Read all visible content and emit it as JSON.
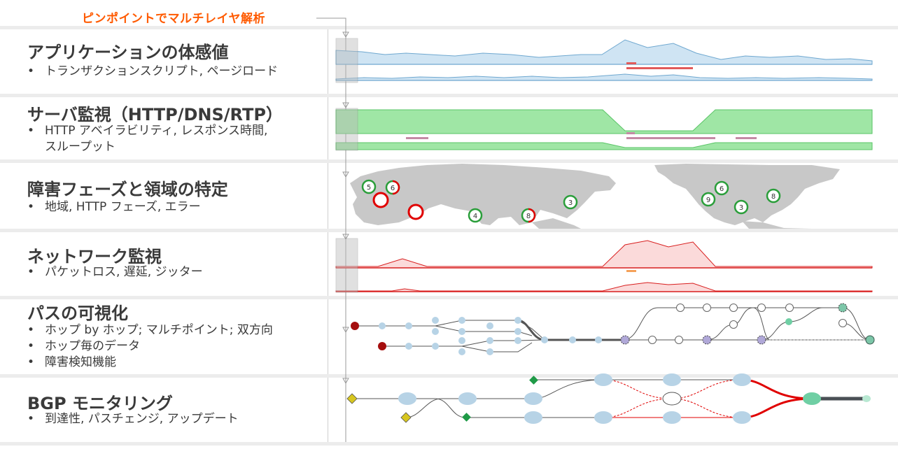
{
  "callout": "ピンポイントでマルチレイヤ解析",
  "sections": [
    {
      "title": "アプリケーションの体感値",
      "bullets": [
        "トランザクションスクリプト, ページロード"
      ]
    },
    {
      "title": "サーバ監視（HTTP/DNS/RTP）",
      "bullets": [
        "HTTP アベイラビリティ, レスポンス時間,",
        "スループット"
      ]
    },
    {
      "title": "障害フェーズと領域の特定",
      "bullets": [
        "地域, HTTP フェーズ, エラー"
      ]
    },
    {
      "title": "ネットワーク監視",
      "bullets": [
        "パケットロス, 遅延, ジッター"
      ]
    },
    {
      "title": "パスの可視化",
      "bullets": [
        "ホップ by ホップ; マルチポイント; 双方向",
        "ホップ毎のデータ",
        "障害検知機能"
      ]
    },
    {
      "title": "BGP モニタリング",
      "bullets": [
        "到達性, パスチェンジ, アップデート"
      ]
    }
  ],
  "map_markers": [
    {
      "label": "5",
      "status": "ok"
    },
    {
      "label": "6",
      "status": "mixed"
    },
    {
      "label": "",
      "status": "error"
    },
    {
      "label": "",
      "status": "error"
    },
    {
      "label": "4",
      "status": "ok"
    },
    {
      "label": "8",
      "status": "mixed"
    },
    {
      "label": "3",
      "status": "ok"
    },
    {
      "label": "6",
      "status": "ok"
    },
    {
      "label": "9",
      "status": "ok"
    },
    {
      "label": "3",
      "status": "ok"
    },
    {
      "label": "8",
      "status": "ok"
    }
  ],
  "colors": {
    "callout": "#ff5a00",
    "app_fill": "#cfe4f3",
    "app_line": "#6fa8d0",
    "server_fill": "#9fe6a5",
    "server_line": "#59c466",
    "net_fill": "#fbdada",
    "net_line": "#d81e1e",
    "ok": "#2a9e3a",
    "error": "#e00000",
    "map": "#c8c8c8",
    "node": "#b7d3e6",
    "bgp_path": "#e00000"
  }
}
